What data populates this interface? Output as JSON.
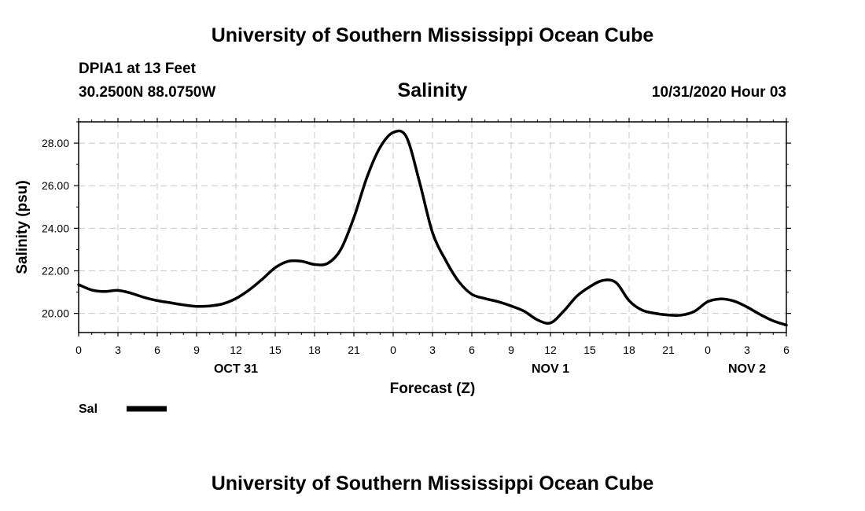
{
  "header": {
    "main_title": "University of Southern Mississippi Ocean Cube",
    "station": "DPIA1 at 13 Feet",
    "coords": "30.2500N 88.0750W",
    "variable": "Salinity",
    "datetime": "10/31/2020 Hour 03"
  },
  "footer": {
    "title": "University of Southern Mississippi Ocean Cube"
  },
  "legend": {
    "label": "Sal",
    "color": "#000000"
  },
  "chart_data": {
    "type": "line",
    "title": "Salinity",
    "xlabel": "Forecast (Z)",
    "ylabel": "Salinity (psu)",
    "grid": true,
    "legend_position": "bottom-left",
    "xlim": [
      0,
      54
    ],
    "ylim": [
      19.1,
      29.0
    ],
    "x_ticks": [
      0,
      3,
      6,
      9,
      12,
      15,
      18,
      21,
      24,
      27,
      30,
      33,
      36,
      39,
      42,
      45,
      48,
      51,
      54
    ],
    "x_tick_labels": [
      "0",
      "3",
      "6",
      "9",
      "12",
      "15",
      "18",
      "21",
      "0",
      "3",
      "6",
      "9",
      "12",
      "15",
      "18",
      "21",
      "0",
      "3",
      "6"
    ],
    "y_ticks": [
      20,
      22,
      24,
      26,
      28
    ],
    "y_tick_labels": [
      "20.00",
      "22.00",
      "24.00",
      "26.00",
      "28.00"
    ],
    "date_labels": [
      {
        "x": 12,
        "label": "OCT 31"
      },
      {
        "x": 36,
        "label": "NOV 1"
      },
      {
        "x": 51,
        "label": "NOV 2"
      }
    ],
    "series": [
      {
        "name": "Sal",
        "x": [
          0,
          1,
          2,
          3,
          4,
          5,
          6,
          7,
          8,
          9,
          10,
          11,
          12,
          13,
          14,
          15,
          16,
          17,
          18,
          19,
          20,
          21,
          22,
          23,
          24,
          25,
          26,
          27,
          28,
          29,
          30,
          31,
          32,
          33,
          34,
          35,
          36,
          37,
          38,
          39,
          40,
          41,
          42,
          43,
          44,
          45,
          46,
          47,
          48,
          49,
          50,
          51,
          52,
          53,
          54
        ],
        "values": [
          21.35,
          21.1,
          21.03,
          21.08,
          20.95,
          20.75,
          20.6,
          20.5,
          20.4,
          20.33,
          20.35,
          20.45,
          20.7,
          21.1,
          21.6,
          22.15,
          22.45,
          22.45,
          22.3,
          22.35,
          23.0,
          24.5,
          26.4,
          27.8,
          28.5,
          28.3,
          26.2,
          23.8,
          22.5,
          21.5,
          20.9,
          20.7,
          20.55,
          20.35,
          20.1,
          19.7,
          19.55,
          20.1,
          20.8,
          21.25,
          21.55,
          21.45,
          20.6,
          20.15,
          20.0,
          19.92,
          19.92,
          20.1,
          20.55,
          20.68,
          20.58,
          20.3,
          19.95,
          19.65,
          19.45
        ]
      }
    ]
  }
}
